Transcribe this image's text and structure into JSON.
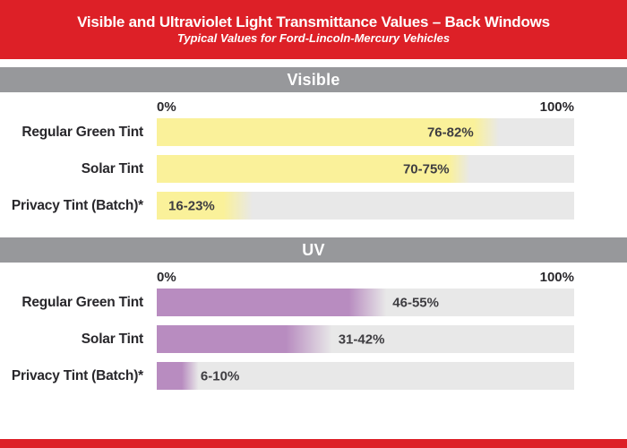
{
  "header": {
    "title_main": "Visible and Ultraviolet Light Transmittance Values – ",
    "title_emphasis": "Back Windows",
    "subtitle": "Typical Values for Ford-Lincoln-Mercury Vehicles"
  },
  "colors": {
    "banner_red": "#dd2027",
    "band_gray": "#97989b",
    "track_gray": "#e8e8e8",
    "visible_bar_yellow": "#faf19a",
    "uv_bar_purple": "#b88cc0",
    "label_text": "#28272b",
    "value_text": "#3e3d41"
  },
  "chart_data": [
    {
      "type": "bar",
      "title": "Visible",
      "orientation": "horizontal",
      "categories": [
        "Regular Green Tint",
        "Solar Tint",
        "Privacy Tint (Batch)*"
      ],
      "ranges_pct": [
        [
          76,
          82
        ],
        [
          70,
          75
        ],
        [
          16,
          23
        ]
      ],
      "value_labels": [
        "76-82%",
        "70-75%",
        "16-23%"
      ],
      "value_label_left_pct": [
        64.8,
        59.0,
        2.8
      ],
      "bar_color": "#faf19a",
      "xlim": [
        0,
        100
      ],
      "x_tick_labels": [
        "0%",
        "100%"
      ],
      "grid": false,
      "legend": false
    },
    {
      "type": "bar",
      "title": "UV",
      "orientation": "horizontal",
      "categories": [
        "Regular Green Tint",
        "Solar Tint",
        "Privacy Tint (Batch)*"
      ],
      "ranges_pct": [
        [
          46,
          55
        ],
        [
          31,
          42
        ],
        [
          6,
          10
        ]
      ],
      "value_labels": [
        "46-55%",
        "31-42%",
        "6-10%"
      ],
      "value_label_left_pct": [
        56.5,
        43.5,
        10.5
      ],
      "bar_color": "#b88cc0",
      "xlim": [
        0,
        100
      ],
      "x_tick_labels": [
        "0%",
        "100%"
      ],
      "grid": false,
      "legend": false
    }
  ]
}
